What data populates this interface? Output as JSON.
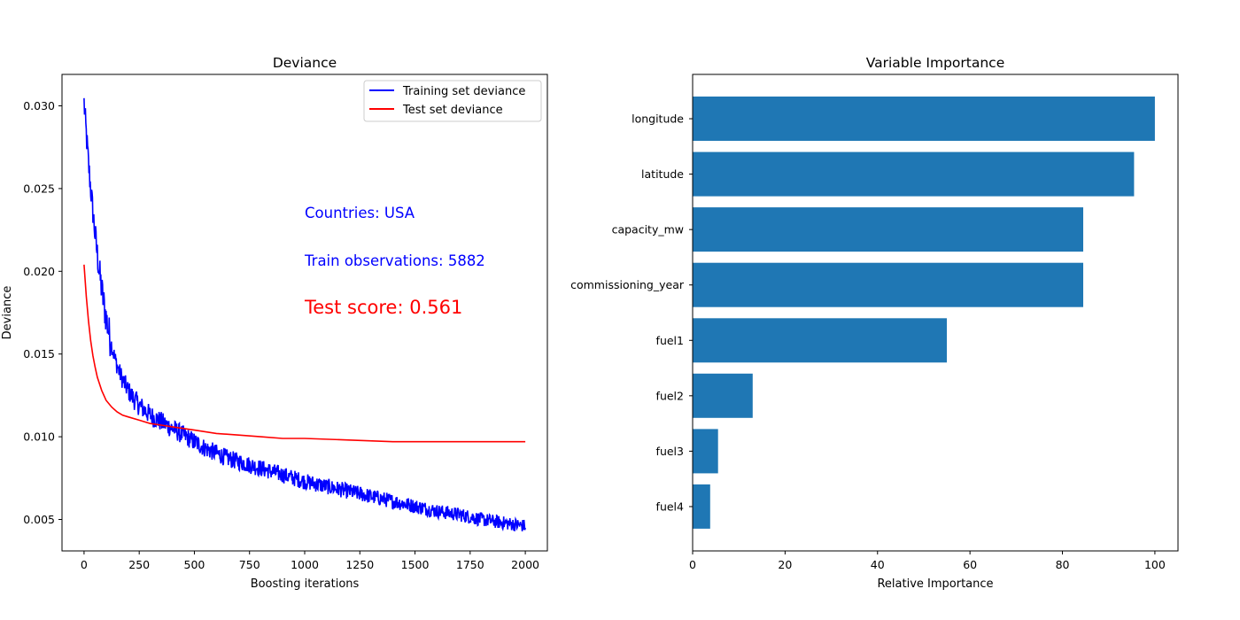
{
  "chart_data": [
    {
      "type": "line",
      "title": "Deviance",
      "xlabel": "Boosting iterations",
      "ylabel": "Deviance",
      "xlim": [
        -100,
        2100
      ],
      "ylim": [
        0.0031,
        0.0319
      ],
      "xticks": [
        0,
        250,
        500,
        750,
        1000,
        1250,
        1500,
        1750,
        2000
      ],
      "xtick_labels": [
        "0",
        "250",
        "500",
        "750",
        "1000",
        "1250",
        "1500",
        "1750",
        "2000"
      ],
      "yticks": [
        0.005,
        0.01,
        0.015,
        0.02,
        0.025,
        0.03
      ],
      "ytick_labels": [
        "0.005",
        "0.010",
        "0.015",
        "0.020",
        "0.025",
        "0.030"
      ],
      "grid": false,
      "legend_position": "top-right",
      "series": [
        {
          "name": "Training set deviance",
          "color": "#0000ff",
          "x": [
            0,
            5,
            10,
            20,
            30,
            40,
            50,
            60,
            70,
            80,
            90,
            100,
            120,
            140,
            160,
            180,
            200,
            225,
            250,
            275,
            300,
            350,
            400,
            450,
            500,
            550,
            600,
            650,
            700,
            750,
            800,
            850,
            900,
            950,
            1000,
            1100,
            1200,
            1300,
            1400,
            1500,
            1600,
            1700,
            1800,
            1900,
            2000
          ],
          "y": [
            0.0302,
            0.0292,
            0.0283,
            0.0265,
            0.025,
            0.0236,
            0.0222,
            0.021,
            0.0199,
            0.0189,
            0.018,
            0.0172,
            0.0158,
            0.0147,
            0.0139,
            0.0133,
            0.0128,
            0.0123,
            0.0119,
            0.0116,
            0.0113,
            0.0109,
            0.0105,
            0.0101,
            0.0097,
            0.0093,
            0.009,
            0.0087,
            0.0085,
            0.0083,
            0.0081,
            0.0079,
            0.0077,
            0.0075,
            0.0073,
            0.007,
            0.0067,
            0.0064,
            0.0061,
            0.0058,
            0.0055,
            0.0053,
            0.005,
            0.0048,
            0.0046
          ]
        },
        {
          "name": "Test set deviance",
          "color": "#ff0000",
          "x": [
            0,
            10,
            20,
            30,
            40,
            50,
            60,
            80,
            100,
            125,
            150,
            175,
            200,
            250,
            300,
            350,
            400,
            500,
            600,
            700,
            800,
            900,
            1000,
            1200,
            1400,
            1600,
            1800,
            2000
          ],
          "y": [
            0.0204,
            0.0185,
            0.017,
            0.0158,
            0.0149,
            0.0142,
            0.0136,
            0.0128,
            0.0122,
            0.0118,
            0.0115,
            0.0113,
            0.0112,
            0.011,
            0.0108,
            0.0107,
            0.0106,
            0.0104,
            0.0102,
            0.0101,
            0.01,
            0.0099,
            0.0099,
            0.0098,
            0.0097,
            0.0097,
            0.0097,
            0.0097
          ]
        }
      ],
      "annotations": [
        {
          "text": "Countries: USA",
          "color": "#0000ff"
        },
        {
          "text": "Train observations: 5882",
          "color": "#0000ff"
        },
        {
          "text": "Test score: 0.561",
          "color": "#ff0000"
        }
      ]
    },
    {
      "type": "bar",
      "orientation": "horizontal",
      "title": "Variable Importance",
      "xlabel": "Relative Importance",
      "ylabel": "",
      "xlim": [
        0,
        105
      ],
      "xticks": [
        0,
        20,
        40,
        60,
        80,
        100
      ],
      "xtick_labels": [
        "0",
        "20",
        "40",
        "60",
        "80",
        "100"
      ],
      "grid": false,
      "bar_color": "#1f77b4",
      "categories": [
        "longitude",
        "latitude",
        "capacity_mw",
        "commissioning_year",
        "fuel1",
        "fuel2",
        "fuel3",
        "fuel4"
      ],
      "values": [
        100,
        95.5,
        84.5,
        84.5,
        55,
        13,
        5.5,
        3.8
      ]
    }
  ]
}
